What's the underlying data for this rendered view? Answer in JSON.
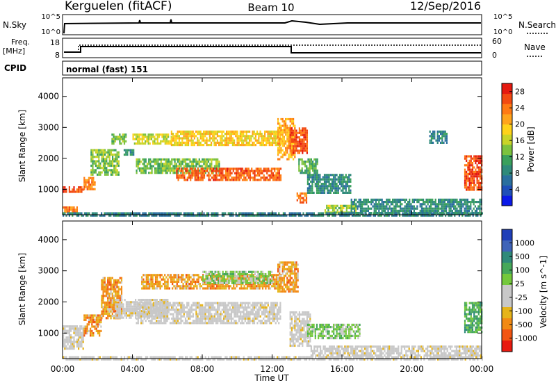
{
  "header": {
    "station": "Kerguelen (fitACF)",
    "beam": "Beam 10",
    "date": "12/Sep/2016"
  },
  "status_panels": {
    "nsky_label": "N.Sky",
    "nsky_ticks": [
      "10^5",
      "10^0"
    ],
    "nsearch_label": "N.Search",
    "freq_label_line1": "Freq.",
    "freq_label_line2": "[MHz]",
    "freq_ticks": [
      "18",
      "8"
    ],
    "nave_label": "Nave",
    "nave_ticks": [
      "60",
      "0"
    ],
    "cpid_label": "CPID",
    "cpid_value": "normal (fast) 151"
  },
  "x_axis": {
    "label": "Time UT",
    "ticks": [
      "00:00",
      "04:00",
      "08:00",
      "12:00",
      "16:00",
      "20:00",
      "00:00"
    ]
  },
  "chart_data": [
    {
      "type": "heatmap",
      "name": "power",
      "x": "Time UT (hours)",
      "xlim": [
        0,
        24
      ],
      "ylabel": "Slant Range [km]",
      "ylim": [
        180,
        4600
      ],
      "yticks": [
        1000,
        2000,
        3000,
        4000
      ],
      "colorbar": {
        "label": "Power [dB]",
        "range": [
          0,
          30
        ],
        "ticks": [
          "4",
          "8",
          "12",
          "16",
          "20",
          "24",
          "28"
        ],
        "colors": [
          "#0b19e8",
          "#1f4fb8",
          "#2a6f9e",
          "#2f8a7a",
          "#3aa05c",
          "#7cc23e",
          "#c9d428",
          "#ffd21a",
          "#ffa41c",
          "#ff7a14",
          "#f24a12",
          "#e51a10"
        ]
      },
      "features": [
        {
          "t0": 0.0,
          "t1": 1.2,
          "r0": 900,
          "r1": 1100,
          "level": 27
        },
        {
          "t0": 1.2,
          "t1": 1.9,
          "r0": 1000,
          "r1": 1400,
          "level": 23
        },
        {
          "t0": 1.6,
          "t1": 3.2,
          "r0": 1500,
          "r1": 2300,
          "level": 14
        },
        {
          "t0": 2.8,
          "t1": 3.6,
          "r0": 2500,
          "r1": 2800,
          "level": 13
        },
        {
          "t0": 3.5,
          "t1": 4.1,
          "r0": 2100,
          "r1": 2300,
          "level": 9
        },
        {
          "t0": 4.0,
          "t1": 6.2,
          "r0": 2500,
          "r1": 2800,
          "level": 17
        },
        {
          "t0": 6.2,
          "t1": 12.5,
          "r0": 2450,
          "r1": 2900,
          "level": 19
        },
        {
          "t0": 4.2,
          "t1": 9.0,
          "r0": 1550,
          "r1": 2000,
          "level": 13
        },
        {
          "t0": 6.5,
          "t1": 12.5,
          "r0": 1300,
          "r1": 1700,
          "level": 25
        },
        {
          "t0": 12.3,
          "t1": 13.3,
          "r0": 2000,
          "r1": 3300,
          "level": 21
        },
        {
          "t0": 13.0,
          "t1": 14.0,
          "r0": 2200,
          "r1": 3000,
          "level": 26
        },
        {
          "t0": 13.5,
          "t1": 14.6,
          "r0": 1500,
          "r1": 2000,
          "level": 12
        },
        {
          "t0": 13.4,
          "t1": 14.0,
          "r0": 600,
          "r1": 900,
          "level": 24
        },
        {
          "t0": 14.0,
          "t1": 16.5,
          "r0": 900,
          "r1": 1500,
          "level": 9
        },
        {
          "t0": 15.0,
          "t1": 16.8,
          "r0": 250,
          "r1": 500,
          "level": 15
        },
        {
          "t0": 16.5,
          "t1": 24.0,
          "r0": 250,
          "r1": 700,
          "level": 9
        },
        {
          "t0": 21.0,
          "t1": 22.0,
          "r0": 2500,
          "r1": 2900,
          "level": 8
        },
        {
          "t0": 23.0,
          "t1": 24.0,
          "r0": 1000,
          "r1": 2100,
          "level": 26
        },
        {
          "t0": 0.0,
          "t1": 0.8,
          "r0": 250,
          "r1": 450,
          "level": 24
        },
        {
          "t0": 0.0,
          "t1": 24.0,
          "r0": 180,
          "r1": 260,
          "level": 8
        }
      ]
    },
    {
      "type": "heatmap",
      "name": "velocity",
      "x": "Time UT (hours)",
      "xlim": [
        0,
        24
      ],
      "ylabel": "Slant Range [km]",
      "ylim": [
        180,
        4600
      ],
      "yticks": [
        1000,
        2000,
        3000,
        4000
      ],
      "colorbar": {
        "label": "Velocity [m s^-1]",
        "ticks": [
          "1000",
          "500",
          "100",
          "25",
          "-25",
          "-100",
          "-500",
          "-1000"
        ],
        "colors": [
          "#1f3fb8",
          "#3f64b8",
          "#2f8a7a",
          "#46a85a",
          "#74c83c",
          "#c8c8c8",
          "#c8c8c8",
          "#e6b41a",
          "#f28a14",
          "#f25512",
          "#e81a10"
        ]
      },
      "features": [
        {
          "t0": 0.0,
          "t1": 1.2,
          "r0": 500,
          "r1": 1250,
          "class": "ground"
        },
        {
          "t0": 1.2,
          "t1": 2.2,
          "r0": 900,
          "r1": 1600,
          "class": "neg"
        },
        {
          "t0": 2.2,
          "t1": 3.4,
          "r0": 1500,
          "r1": 2800,
          "class": "neg"
        },
        {
          "t0": 3.0,
          "t1": 6.0,
          "r0": 1500,
          "r1": 2100,
          "class": "ground"
        },
        {
          "t0": 4.2,
          "t1": 12.5,
          "r0": 1300,
          "r1": 2000,
          "class": "ground"
        },
        {
          "t0": 4.5,
          "t1": 12.5,
          "r0": 2400,
          "r1": 2900,
          "class": "neg"
        },
        {
          "t0": 8.0,
          "t1": 12.0,
          "r0": 2600,
          "r1": 3000,
          "class": "pos_weak"
        },
        {
          "t0": 12.3,
          "t1": 13.5,
          "r0": 2300,
          "r1": 3300,
          "class": "neg"
        },
        {
          "t0": 13.0,
          "t1": 14.2,
          "r0": 600,
          "r1": 1700,
          "class": "ground"
        },
        {
          "t0": 14.0,
          "t1": 17.0,
          "r0": 800,
          "r1": 1300,
          "class": "pos_weak"
        },
        {
          "t0": 14.2,
          "t1": 24.0,
          "r0": 250,
          "r1": 600,
          "class": "ground"
        },
        {
          "t0": 23.0,
          "t1": 24.0,
          "r0": 1000,
          "r1": 2000,
          "class": "pos"
        },
        {
          "t0": 0.0,
          "t1": 24.0,
          "r0": 180,
          "r1": 260,
          "class": "ground"
        }
      ]
    }
  ]
}
